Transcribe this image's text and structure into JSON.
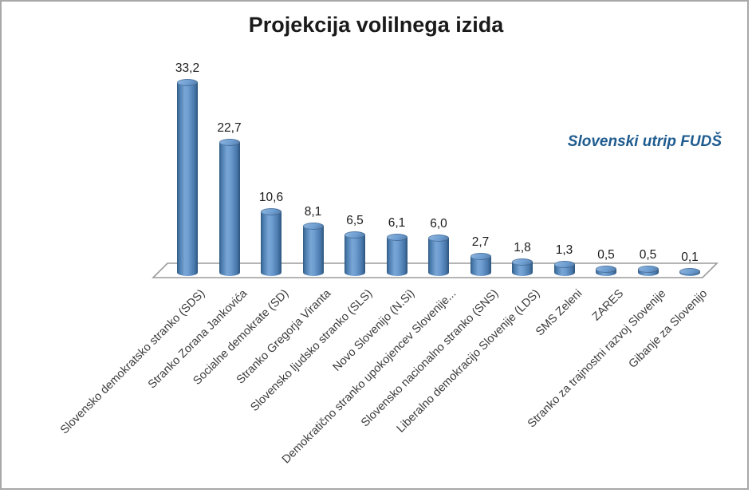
{
  "frame": {
    "background": "#ffffff",
    "border_color": "#a8a8a8"
  },
  "chart_data": {
    "type": "bar",
    "subtype": "3d-cylinder",
    "title": "Projekcija volilnega izida",
    "watermark": "Slovenski utrip FUDŠ",
    "xlabel": "",
    "ylabel": "",
    "ylim": [
      0,
      35
    ],
    "grid": false,
    "legend_position": "none",
    "categories": [
      "Slovensko demokratsko stranko (SDS)",
      "Stranko Zorana Jankovića",
      "Socialne demokrate (SD)",
      "Stranko Gregorja Viranta",
      "Slovensko ljudsko stranko (SLS)",
      "Novo Slovenijo (N.Si)",
      "Demokratično stranko upokojencev Slovenije...",
      "Slovensko nacionalno stranko (SNS)",
      "Liberalno demokracijo Slovenije (LDS)",
      "SMS Zeleni",
      "ZARES",
      "Stranko za trajnostni razvoj Slovenije",
      "Gibanje za Slovenijo"
    ],
    "values": [
      33.2,
      22.7,
      10.6,
      8.1,
      6.5,
      6.1,
      6.0,
      2.7,
      1.8,
      1.3,
      0.5,
      0.5,
      0.1
    ],
    "value_labels": [
      "33,2",
      "22,7",
      "10,6",
      "8,1",
      "6,5",
      "6,1",
      "6,0",
      "2,7",
      "1,8",
      "1,3",
      "0,5",
      "0,5",
      "0,1"
    ],
    "colors": {
      "bar_main": "#4f81bd",
      "bar_light": "#79a6d6",
      "bar_dark": "#2d547c",
      "bar_top": "#6d9ed2",
      "floor_stroke": "#9b9b9b",
      "title_text": "#1a1a1a",
      "category_text": "#3b3b3b",
      "watermark_text": "#1f5c8f"
    }
  }
}
